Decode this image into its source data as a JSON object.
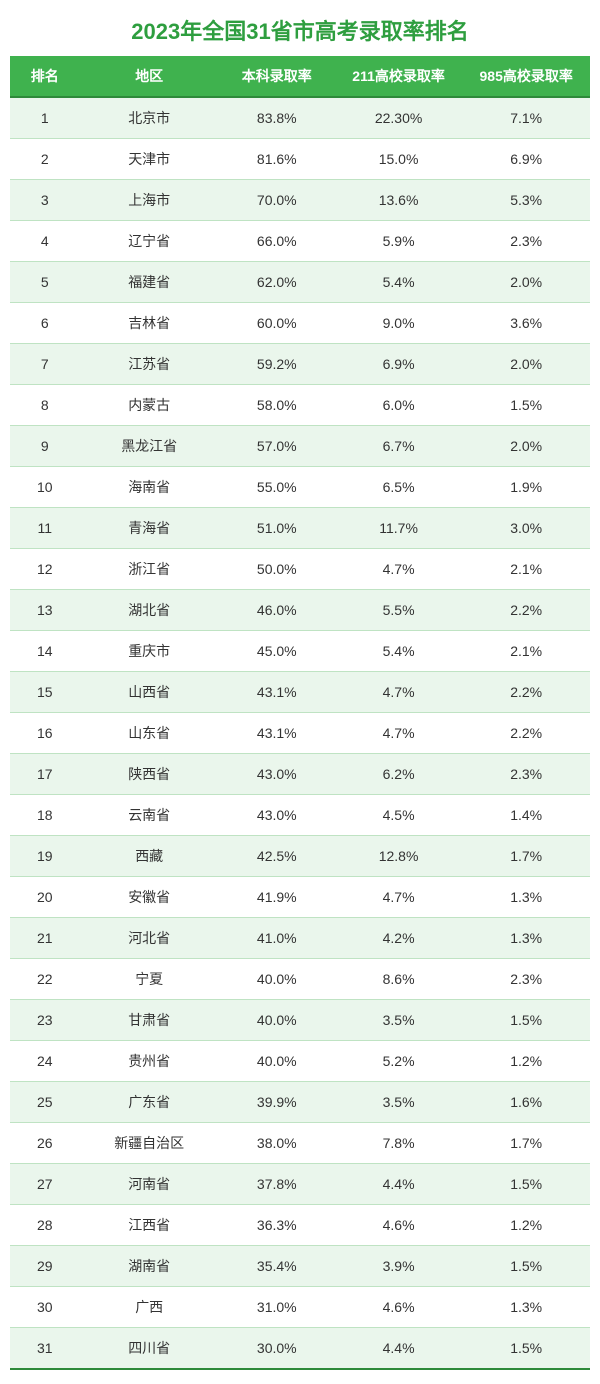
{
  "title": "2023年全国31省市高考录取率排名",
  "colors": {
    "accent": "#2e9e3f",
    "header_bg": "#3fb24e",
    "title_color": "#2e9e3f",
    "row_alt_bg": "#eaf6ec",
    "row_bg": "#ffffff",
    "border": "#bfe3c3",
    "border_strong": "#2e8a3a",
    "text": "#333333",
    "header_text": "#ffffff"
  },
  "table": {
    "columns": [
      "排名",
      "地区",
      "本科录取率",
      "211高校录取率",
      "985高校录取率"
    ],
    "rows": [
      [
        "1",
        "北京市",
        "83.8%",
        "22.30%",
        "7.1%"
      ],
      [
        "2",
        "天津市",
        "81.6%",
        "15.0%",
        "6.9%"
      ],
      [
        "3",
        "上海市",
        "70.0%",
        "13.6%",
        "5.3%"
      ],
      [
        "4",
        "辽宁省",
        "66.0%",
        "5.9%",
        "2.3%"
      ],
      [
        "5",
        "福建省",
        "62.0%",
        "5.4%",
        "2.0%"
      ],
      [
        "6",
        "吉林省",
        "60.0%",
        "9.0%",
        "3.6%"
      ],
      [
        "7",
        "江苏省",
        "59.2%",
        "6.9%",
        "2.0%"
      ],
      [
        "8",
        "内蒙古",
        "58.0%",
        "6.0%",
        "1.5%"
      ],
      [
        "9",
        "黑龙江省",
        "57.0%",
        "6.7%",
        "2.0%"
      ],
      [
        "10",
        "海南省",
        "55.0%",
        "6.5%",
        "1.9%"
      ],
      [
        "11",
        "青海省",
        "51.0%",
        "11.7%",
        "3.0%"
      ],
      [
        "12",
        "浙江省",
        "50.0%",
        "4.7%",
        "2.1%"
      ],
      [
        "13",
        "湖北省",
        "46.0%",
        "5.5%",
        "2.2%"
      ],
      [
        "14",
        "重庆市",
        "45.0%",
        "5.4%",
        "2.1%"
      ],
      [
        "15",
        "山西省",
        "43.1%",
        "4.7%",
        "2.2%"
      ],
      [
        "16",
        "山东省",
        "43.1%",
        "4.7%",
        "2.2%"
      ],
      [
        "17",
        "陕西省",
        "43.0%",
        "6.2%",
        "2.3%"
      ],
      [
        "18",
        "云南省",
        "43.0%",
        "4.5%",
        "1.4%"
      ],
      [
        "19",
        "西藏",
        "42.5%",
        "12.8%",
        "1.7%"
      ],
      [
        "20",
        "安徽省",
        "41.9%",
        "4.7%",
        "1.3%"
      ],
      [
        "21",
        "河北省",
        "41.0%",
        "4.2%",
        "1.3%"
      ],
      [
        "22",
        "宁夏",
        "40.0%",
        "8.6%",
        "2.3%"
      ],
      [
        "23",
        "甘肃省",
        "40.0%",
        "3.5%",
        "1.5%"
      ],
      [
        "24",
        "贵州省",
        "40.0%",
        "5.2%",
        "1.2%"
      ],
      [
        "25",
        "广东省",
        "39.9%",
        "3.5%",
        "1.6%"
      ],
      [
        "26",
        "新疆自治区",
        "38.0%",
        "7.8%",
        "1.7%"
      ],
      [
        "27",
        "河南省",
        "37.8%",
        "4.4%",
        "1.5%"
      ],
      [
        "28",
        "江西省",
        "36.3%",
        "4.6%",
        "1.2%"
      ],
      [
        "29",
        "湖南省",
        "35.4%",
        "3.9%",
        "1.5%"
      ],
      [
        "30",
        "广西",
        "31.0%",
        "4.6%",
        "1.3%"
      ],
      [
        "31",
        "四川省",
        "30.0%",
        "4.4%",
        "1.5%"
      ]
    ]
  }
}
